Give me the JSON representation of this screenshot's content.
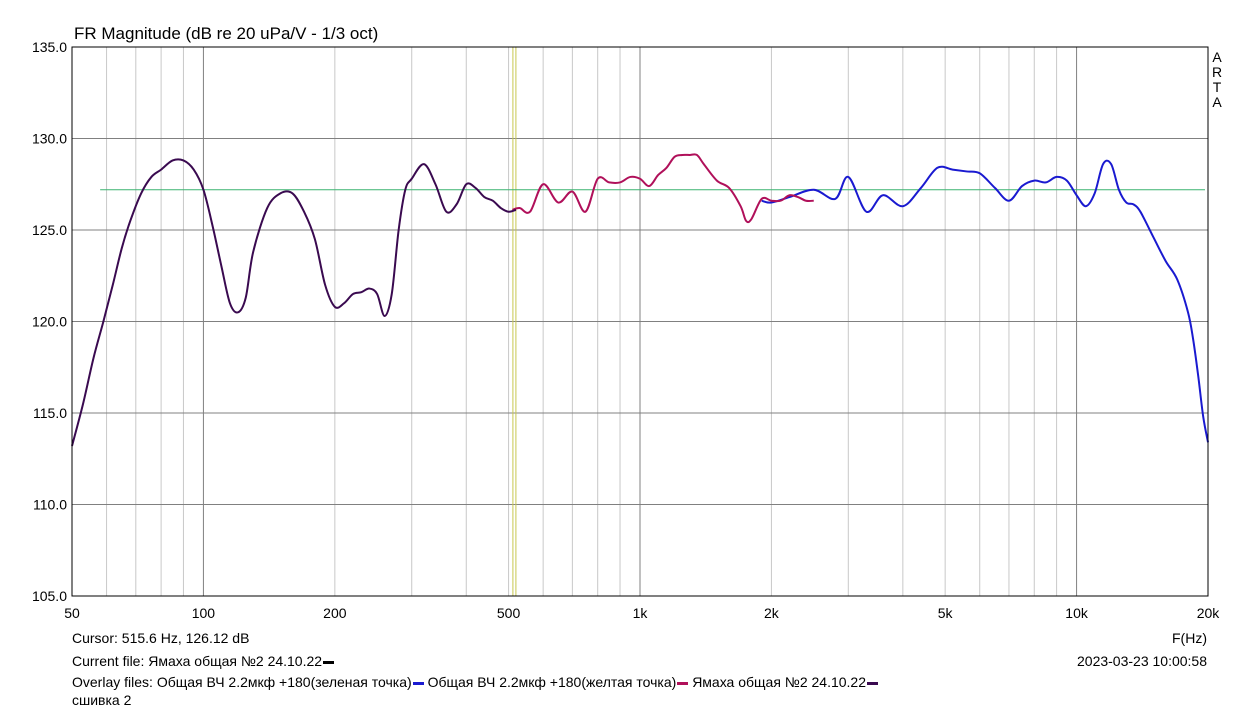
{
  "chart_data": {
    "type": "line",
    "title": "FR Magnitude (dB re 20 uPa/V - 1/3 oct)",
    "xlabel": "F(Hz)",
    "ylabel": "",
    "x_scale": "log",
    "xlim": [
      50,
      20000
    ],
    "ylim": [
      105,
      135
    ],
    "grid": true,
    "x_tick_labels": [
      {
        "v": 50,
        "t": "50"
      },
      {
        "v": 100,
        "t": "100"
      },
      {
        "v": 200,
        "t": "200"
      },
      {
        "v": 500,
        "t": "500"
      },
      {
        "v": 1000,
        "t": "1k"
      },
      {
        "v": 2000,
        "t": "2k"
      },
      {
        "v": 5000,
        "t": "5k"
      },
      {
        "v": 10000,
        "t": "10k"
      },
      {
        "v": 20000,
        "t": "20k"
      }
    ],
    "y_tick_labels": [
      {
        "v": 135,
        "t": "135.0"
      },
      {
        "v": 130,
        "t": "130.0"
      },
      {
        "v": 125,
        "t": "125.0"
      },
      {
        "v": 120,
        "t": "120.0"
      },
      {
        "v": 115,
        "t": "115.0"
      },
      {
        "v": 110,
        "t": "110.0"
      },
      {
        "v": 105,
        "t": "105.0"
      }
    ],
    "side_label": "ARTA",
    "cursor": {
      "x": 515.6,
      "color": "#c8c850"
    },
    "reference_line": {
      "y": 127.2,
      "x_start": 58,
      "color": "#3cb371"
    },
    "series": [
      {
        "color": "#1a1ad0",
        "x": [
          1900,
          2000,
          2200,
          2500,
          2800,
          3000,
          3300,
          3600,
          4000,
          4400,
          4800,
          5200,
          5600,
          6000,
          6500,
          7000,
          7500,
          8000,
          8500,
          9000,
          9500,
          10000,
          10500,
          11000,
          11500,
          12000,
          12500,
          13000,
          13500,
          14000,
          15000,
          16000,
          17000,
          18000,
          18500,
          19000,
          19500,
          20000
        ],
        "y": [
          126.6,
          126.5,
          126.8,
          127.2,
          126.7,
          127.9,
          126.0,
          126.9,
          126.3,
          127.3,
          128.4,
          128.3,
          128.2,
          128.1,
          127.3,
          126.6,
          127.4,
          127.7,
          127.6,
          127.9,
          127.7,
          126.9,
          126.3,
          127.0,
          128.6,
          128.6,
          127.2,
          126.5,
          126.4,
          126.0,
          124.6,
          123.3,
          122.3,
          120.5,
          119.0,
          117.0,
          114.8,
          113.4
        ]
      },
      {
        "color": "#b0105a",
        "x": [
          510,
          530,
          560,
          600,
          650,
          700,
          750,
          800,
          850,
          900,
          950,
          1000,
          1050,
          1100,
          1150,
          1200,
          1250,
          1300,
          1350,
          1400,
          1500,
          1600,
          1700,
          1750,
          1800,
          1900,
          2000,
          2100,
          2200,
          2300,
          2400,
          2500
        ],
        "y": [
          126.1,
          126.2,
          126.0,
          127.5,
          126.5,
          127.1,
          126.0,
          127.8,
          127.6,
          127.6,
          127.9,
          127.8,
          127.4,
          128.0,
          128.4,
          129.0,
          129.1,
          129.1,
          129.1,
          128.6,
          127.7,
          127.3,
          126.3,
          125.5,
          125.6,
          126.7,
          126.6,
          126.6,
          126.9,
          126.8,
          126.6,
          126.6
        ]
      },
      {
        "color": "#3a0a50",
        "x": [
          50,
          53,
          56,
          59,
          62,
          65,
          68,
          72,
          76,
          80,
          85,
          90,
          95,
          100,
          105,
          110,
          115,
          120,
          125,
          130,
          140,
          150,
          160,
          170,
          180,
          190,
          200,
          210,
          220,
          230,
          240,
          250,
          260,
          270,
          280,
          290,
          300,
          320,
          340,
          360,
          380,
          400,
          420,
          440,
          460,
          480,
          500,
          520
        ],
        "y": [
          113.2,
          115.5,
          118.0,
          120.0,
          122.0,
          124.0,
          125.5,
          127.0,
          127.9,
          128.3,
          128.8,
          128.8,
          128.3,
          127.2,
          125.2,
          123.0,
          121.0,
          120.5,
          121.3,
          123.8,
          126.2,
          127.0,
          127.0,
          126.0,
          124.5,
          122.0,
          120.8,
          121.0,
          121.5,
          121.6,
          121.8,
          121.5,
          120.3,
          121.5,
          125.0,
          127.2,
          127.8,
          128.6,
          127.5,
          126.0,
          126.4,
          127.5,
          127.3,
          126.8,
          126.6,
          126.2,
          126.0,
          126.1
        ]
      }
    ]
  },
  "info": {
    "cursor_text": "Cursor: 515.6 Hz, 126.12 dB",
    "fhz": "F(Hz)",
    "current_file_label": "Current file: Ямаха общая №2 24.10.22",
    "current_file_color": "#000000",
    "timestamp": "2023-03-23  10:00:58",
    "overlay_label": "Overlay files:",
    "overlays": [
      {
        "name": "Общая ВЧ 2.2мкф +180(зеленая точка)",
        "color": "#1a1ad0"
      },
      {
        "name": "Общая ВЧ 2.2мкф +180(желтая точка)",
        "color": "#b0105a"
      },
      {
        "name": "Ямаха общая №2 24.10.22",
        "color": "#3a0a50"
      }
    ],
    "overlay_wrap": "сшивка 2"
  }
}
